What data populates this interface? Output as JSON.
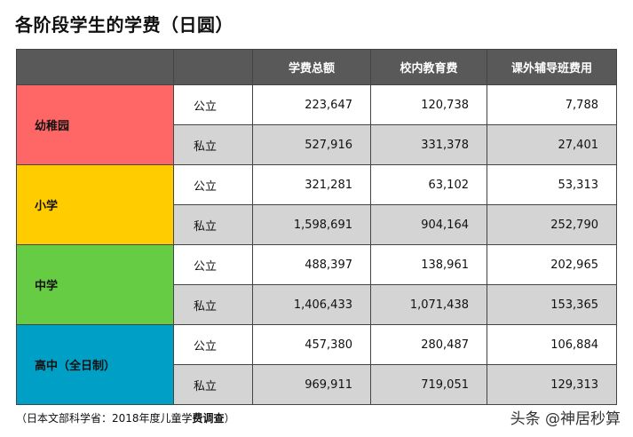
{
  "title": "各阶段学生的学费（日圆）",
  "table": {
    "headers": [
      "",
      "",
      "学费总额",
      "校内教育费",
      "课外辅导班费用"
    ],
    "groups": [
      {
        "level": "幼稚园",
        "color": "#ff6666",
        "rows": [
          {
            "type": "公立",
            "total": "223,647",
            "school": "120,738",
            "extra": "7,788"
          },
          {
            "type": "私立",
            "total": "527,916",
            "school": "331,378",
            "extra": "27,401"
          }
        ]
      },
      {
        "level": "小学",
        "color": "#ffcc00",
        "rows": [
          {
            "type": "公立",
            "total": "321,281",
            "school": "63,102",
            "extra": "53,313"
          },
          {
            "type": "私立",
            "total": "1,598,691",
            "school": "904,164",
            "extra": "252,790"
          }
        ]
      },
      {
        "level": "中学",
        "color": "#66cc44",
        "rows": [
          {
            "type": "公立",
            "total": "488,397",
            "school": "138,961",
            "extra": "202,965"
          },
          {
            "type": "私立",
            "total": "1,406,433",
            "school": "1,071,438",
            "extra": "153,365"
          }
        ]
      },
      {
        "level": "高中（全日制）",
        "color": "#00a0c6",
        "rows": [
          {
            "type": "公立",
            "total": "457,380",
            "school": "280,487",
            "extra": "106,884"
          },
          {
            "type": "私立",
            "total": "969,911",
            "school": "719,051",
            "extra": "129,313"
          }
        ]
      }
    ]
  },
  "footnote": {
    "prefix": "（日本文部科学省：2018年度儿童学",
    "bold": "费调查",
    "suffix": "）"
  },
  "watermark": "头条 @神居秒算"
}
